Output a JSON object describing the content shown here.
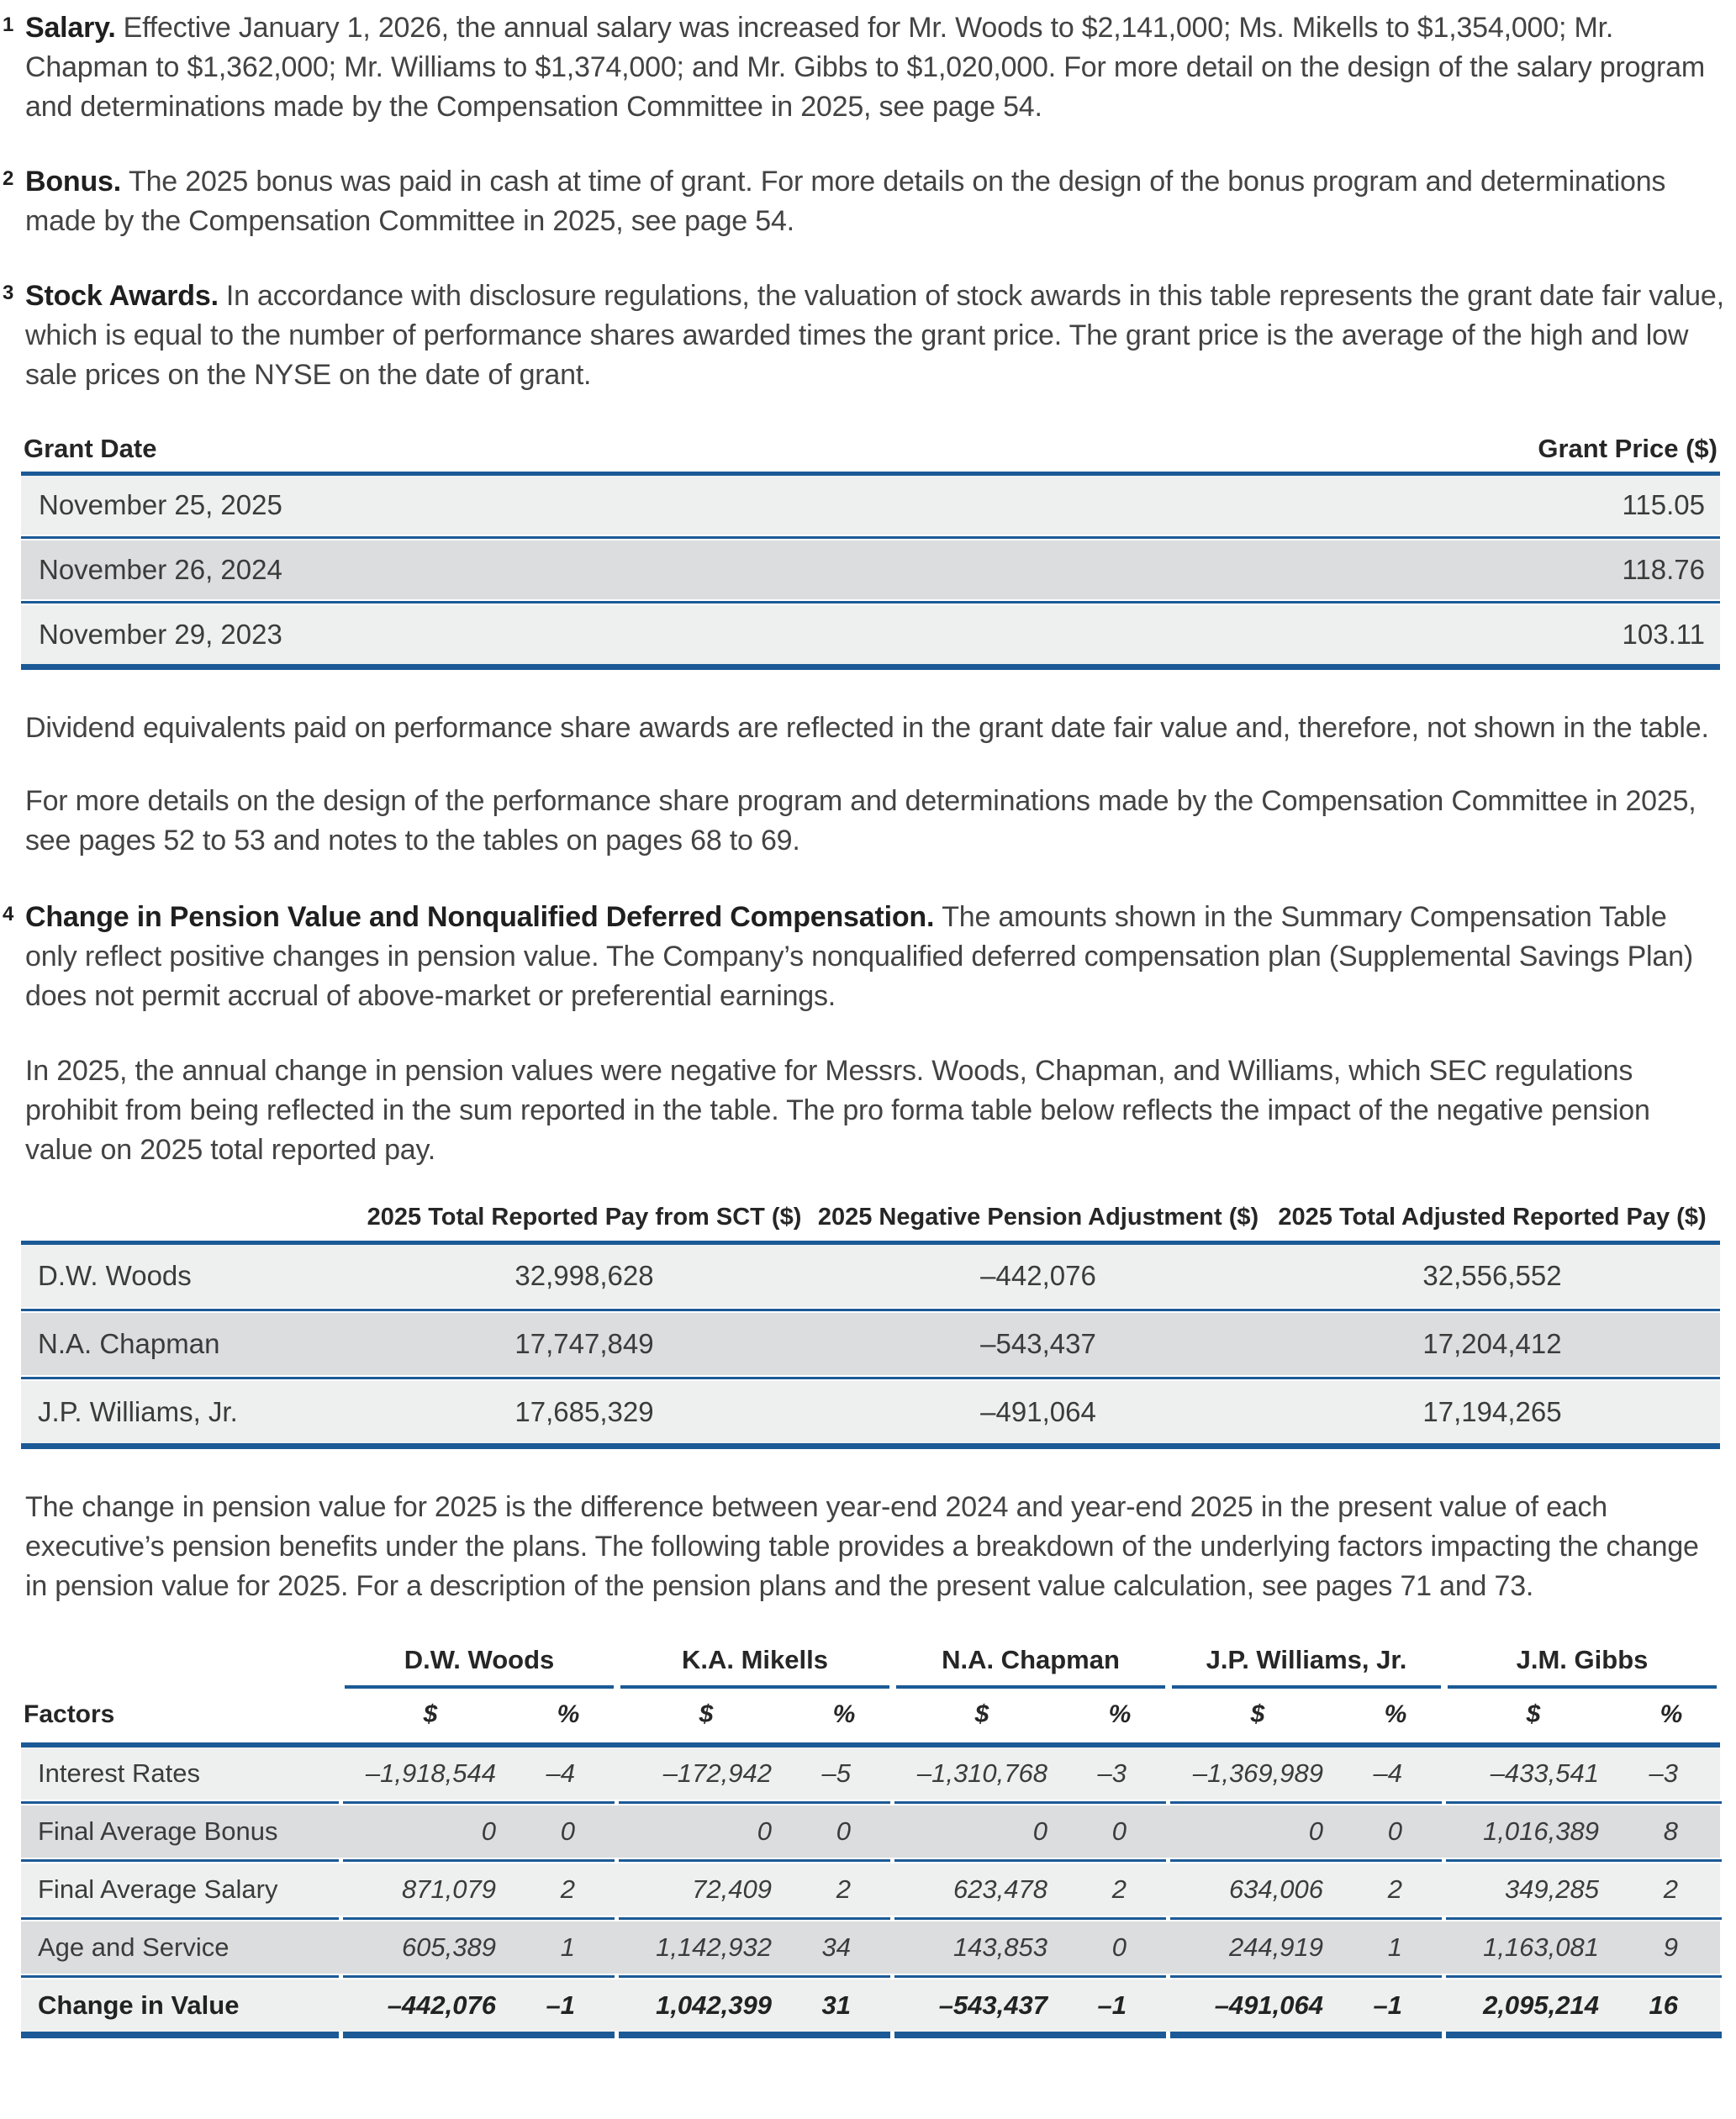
{
  "colors": {
    "accent_blue": "#1b5a96",
    "row_light": "#eef0ef",
    "row_dark": "#dcddde"
  },
  "notes": {
    "n1": {
      "num": "1",
      "title": "Salary.",
      "body": "Effective January 1, 2026, the annual salary was increased for Mr. Woods to $2,141,000; Ms. Mikells to $1,354,000; Mr. Chapman to $1,362,000; Mr. Williams to $1,374,000; and Mr. Gibbs to $1,020,000. For more detail on the design of the salary program and determinations made by the Compensation Committee in 2025, see page 54."
    },
    "n2": {
      "num": "2",
      "title": "Bonus.",
      "body": "The 2025 bonus was paid in cash at time of grant. For more details on the design of the bonus program and determinations made by the Compensation Committee in 2025, see page 54."
    },
    "n3": {
      "num": "3",
      "title": "Stock Awards.",
      "body": "In accordance with disclosure regulations, the valuation of stock awards in this table represents the grant date fair value, which is equal to the number of performance shares awarded times the grant price. The grant price is the average of the high and low sale prices on the NYSE on the date of grant."
    },
    "n4": {
      "num": "4",
      "title": "Change in Pension Value and Nonqualified Deferred Compensation.",
      "body": "The amounts shown in the Summary Compensation Table only reflect positive changes in pension value. The Company’s nonqualified deferred compensation plan (Supplemental Savings Plan) does not permit accrual of above-market or preferential earnings."
    }
  },
  "paragraphs": {
    "dividend": "Dividend equivalents paid on performance share awards are reflected in the grant date fair value and, therefore, not shown in the table.",
    "details": "For more details on the design of the performance share program and determinations made by the Compensation Committee in 2025, see pages 52 to 53 and notes to the tables on pages 68 to 69.",
    "in2025": "In 2025, the annual change in pension values were negative for Messrs. Woods, Chapman, and Williams, which SEC regulations prohibit from being reflected in the sum reported in the table. The pro forma table below reflects the impact of the negative pension value on 2025 total reported pay.",
    "change": "The change in pension value for 2025 is the difference between year-end 2024 and year-end 2025 in the present value of each executive’s pension benefits under the plans. The following table provides a breakdown of the underlying factors impacting the change in pension value for 2025. For a description of the pension plans and the present value calculation, see pages 71 and 73."
  },
  "grant_table": {
    "col_date": "Grant Date",
    "col_price": "Grant Price ($)",
    "rows": [
      [
        "November 25, 2025",
        "115.05"
      ],
      [
        "November 26, 2024",
        "118.76"
      ],
      [
        "November 29, 2023",
        "103.11"
      ]
    ]
  },
  "proforma_table": {
    "headers": [
      "2025 Total Reported Pay from SCT ($)",
      "2025 Negative Pension Adjustment ($)",
      "2025 Total Adjusted Reported Pay ($)"
    ],
    "rows": [
      [
        "D.W. Woods",
        "32,998,628",
        "–442,076",
        "32,556,552"
      ],
      [
        "N.A. Chapman",
        "17,747,849",
        "–543,437",
        "17,204,412"
      ],
      [
        "J.P. Williams, Jr.",
        "17,685,329",
        "–491,064",
        "17,194,265"
      ]
    ]
  },
  "factors_table": {
    "groups": [
      "D.W. Woods",
      "K.A. Mikells",
      "N.A. Chapman",
      "J.P. Williams, Jr.",
      "J.M. Gibbs"
    ],
    "factors_label": "Factors",
    "dollar": "$",
    "pct": "%",
    "rows": [
      {
        "label": "Interest Rates",
        "v": [
          "–1,918,544",
          "–4",
          "–172,942",
          "–5",
          "–1,310,768",
          "–3",
          "–1,369,989",
          "–4",
          "–433,541",
          "–3"
        ]
      },
      {
        "label": "Final Average Bonus",
        "v": [
          "0",
          "0",
          "0",
          "0",
          "0",
          "0",
          "0",
          "0",
          "1,016,389",
          "8"
        ]
      },
      {
        "label": "Final Average Salary",
        "v": [
          "871,079",
          "2",
          "72,409",
          "2",
          "623,478",
          "2",
          "634,006",
          "2",
          "349,285",
          "2"
        ]
      },
      {
        "label": "Age and Service",
        "v": [
          "605,389",
          "1",
          "1,142,932",
          "34",
          "143,853",
          "0",
          "244,919",
          "1",
          "1,163,081",
          "9"
        ]
      },
      {
        "label": "Change in Value",
        "v": [
          "–442,076",
          "–1",
          "1,042,399",
          "31",
          "–543,437",
          "–1",
          "–491,064",
          "–1",
          "2,095,214",
          "16"
        ]
      }
    ]
  }
}
